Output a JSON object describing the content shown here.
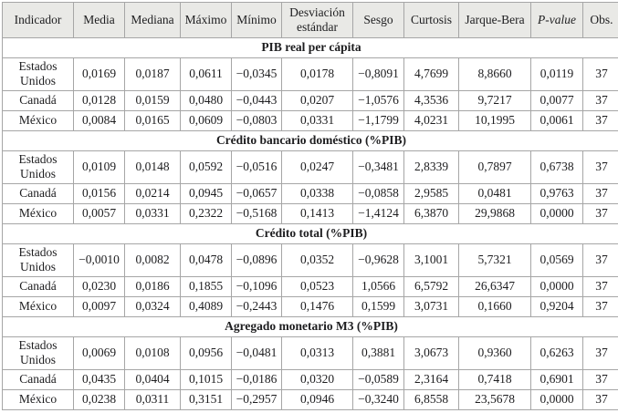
{
  "table": {
    "columns": [
      "Indicador",
      "Media",
      "Mediana",
      "Máximo",
      "Mínimo",
      "Desviación estándar",
      "Sesgo",
      "Curtosis",
      "Jarque-Bera",
      "P-value",
      "Obs."
    ],
    "sections": [
      {
        "title": "PIB real per cápita",
        "rows": [
          {
            "label": "Estados Unidos",
            "values": [
              "0,0169",
              "0,0187",
              "0,0611",
              "−0,0345",
              "0,0178",
              "−0,8091",
              "4,7699",
              "8,8660",
              "0,0119",
              "37"
            ]
          },
          {
            "label": "Canadá",
            "values": [
              "0,0128",
              "0,0159",
              "0,0480",
              "−0,0443",
              "0,0207",
              "−1,0576",
              "4,3536",
              "9,7217",
              "0,0077",
              "37"
            ]
          },
          {
            "label": "México",
            "values": [
              "0,0084",
              "0,0165",
              "0,0609",
              "−0,0803",
              "0,0331",
              "−1,1799",
              "4,0231",
              "10,1995",
              "0,0061",
              "37"
            ]
          }
        ]
      },
      {
        "title": "Crédito bancario doméstico (%PIB)",
        "rows": [
          {
            "label": "Estados Unidos",
            "values": [
              "0,0109",
              "0,0148",
              "0,0592",
              "−0,0516",
              "0,0247",
              "−0,3481",
              "2,8339",
              "0,7897",
              "0,6738",
              "37"
            ]
          },
          {
            "label": "Canadá",
            "values": [
              "0,0156",
              "0,0214",
              "0,0945",
              "−0,0657",
              "0,0338",
              "−0,0858",
              "2,9585",
              "0,0481",
              "0,9763",
              "37"
            ]
          },
          {
            "label": "México",
            "values": [
              "0,0057",
              "0,0331",
              "0,2322",
              "−0,5168",
              "0,1413",
              "−1,4124",
              "6,3870",
              "29,9868",
              "0,0000",
              "37"
            ]
          }
        ]
      },
      {
        "title": "Crédito total (%PIB)",
        "rows": [
          {
            "label": "Estados Unidos",
            "values": [
              "−0,0010",
              "0,0082",
              "0,0478",
              "−0,0896",
              "0,0352",
              "−0,9628",
              "3,1001",
              "5,7321",
              "0,0569",
              "37"
            ]
          },
          {
            "label": "Canadá",
            "values": [
              "0,0230",
              "0,0186",
              "0,1855",
              "−0,1096",
              "0,0523",
              "1,0566",
              "6,5792",
              "26,6347",
              "0,0000",
              "37"
            ]
          },
          {
            "label": "México",
            "values": [
              "0,0097",
              "0,0324",
              "0,4089",
              "−0,2443",
              "0,1476",
              "0,1599",
              "3,0731",
              "0,1660",
              "0,9204",
              "37"
            ]
          }
        ]
      },
      {
        "title": "Agregado monetario M3 (%PIB)",
        "rows": [
          {
            "label": "Estados Unidos",
            "values": [
              "0,0069",
              "0,0108",
              "0,0956",
              "−0,0481",
              "0,0313",
              "0,3881",
              "3,0673",
              "0,9360",
              "0,6263",
              "37"
            ]
          },
          {
            "label": "Canadá",
            "values": [
              "0,0435",
              "0,0404",
              "0,1015",
              "−0,0186",
              "0,0320",
              "−0,0589",
              "2,3164",
              "0,7418",
              "0,6901",
              "37"
            ]
          },
          {
            "label": "México",
            "values": [
              "0,0238",
              "0,0311",
              "0,3151",
              "−0,2957",
              "0,0946",
              "−0,3240",
              "6,8558",
              "23,5678",
              "0,0000",
              "37"
            ]
          }
        ]
      }
    ]
  },
  "colors": {
    "header_background": "#e9e9e6",
    "grid_line": "#a6a6a6",
    "outer_border": "#8e8e8e",
    "text": "#1d1d1f",
    "body_background": "#ffffff"
  }
}
